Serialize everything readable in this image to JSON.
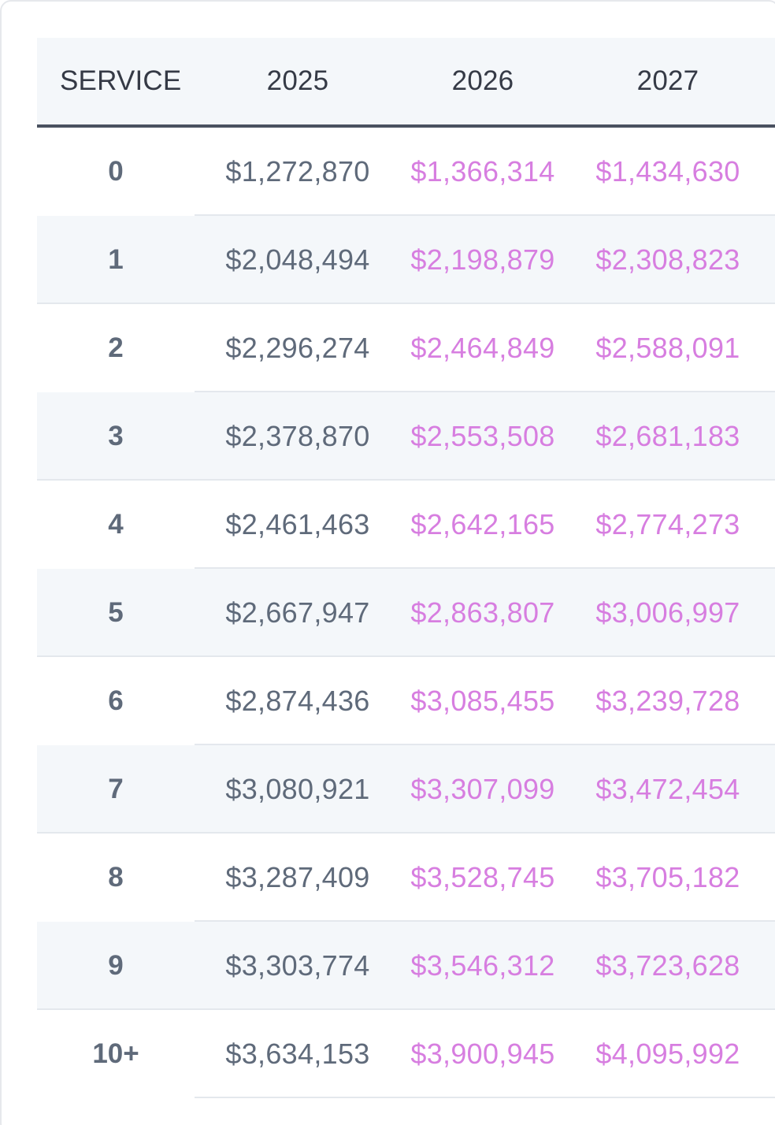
{
  "table": {
    "headers": {
      "service": "SERVICE",
      "y2025": "2025",
      "y2026": "2026",
      "y2027": "2027"
    },
    "rows": [
      {
        "service": "0",
        "y2025": "$1,272,870",
        "y2026": "$1,366,314",
        "y2027": "$1,434,630"
      },
      {
        "service": "1",
        "y2025": "$2,048,494",
        "y2026": "$2,198,879",
        "y2027": "$2,308,823"
      },
      {
        "service": "2",
        "y2025": "$2,296,274",
        "y2026": "$2,464,849",
        "y2027": "$2,588,091"
      },
      {
        "service": "3",
        "y2025": "$2,378,870",
        "y2026": "$2,553,508",
        "y2027": "$2,681,183"
      },
      {
        "service": "4",
        "y2025": "$2,461,463",
        "y2026": "$2,642,165",
        "y2027": "$2,774,273"
      },
      {
        "service": "5",
        "y2025": "$2,667,947",
        "y2026": "$2,863,807",
        "y2027": "$3,006,997"
      },
      {
        "service": "6",
        "y2025": "$2,874,436",
        "y2026": "$3,085,455",
        "y2027": "$3,239,728"
      },
      {
        "service": "7",
        "y2025": "$3,080,921",
        "y2026": "$3,307,099",
        "y2027": "$3,472,454"
      },
      {
        "service": "8",
        "y2025": "$3,287,409",
        "y2026": "$3,528,745",
        "y2027": "$3,705,182"
      },
      {
        "service": "9",
        "y2025": "$3,303,774",
        "y2026": "$3,546,312",
        "y2027": "$3,723,628"
      },
      {
        "service": "10+",
        "y2025": "$3,634,153",
        "y2026": "$3,900,945",
        "y2027": "$4,095,992"
      }
    ]
  },
  "colors": {
    "header_bg": "#f4f7fa",
    "header_text": "#353a46",
    "header_border": "#4a5160",
    "body_text": "#5f6a7a",
    "future_value_text": "#d77ee0",
    "stripe_bg": "#f4f7fa"
  }
}
